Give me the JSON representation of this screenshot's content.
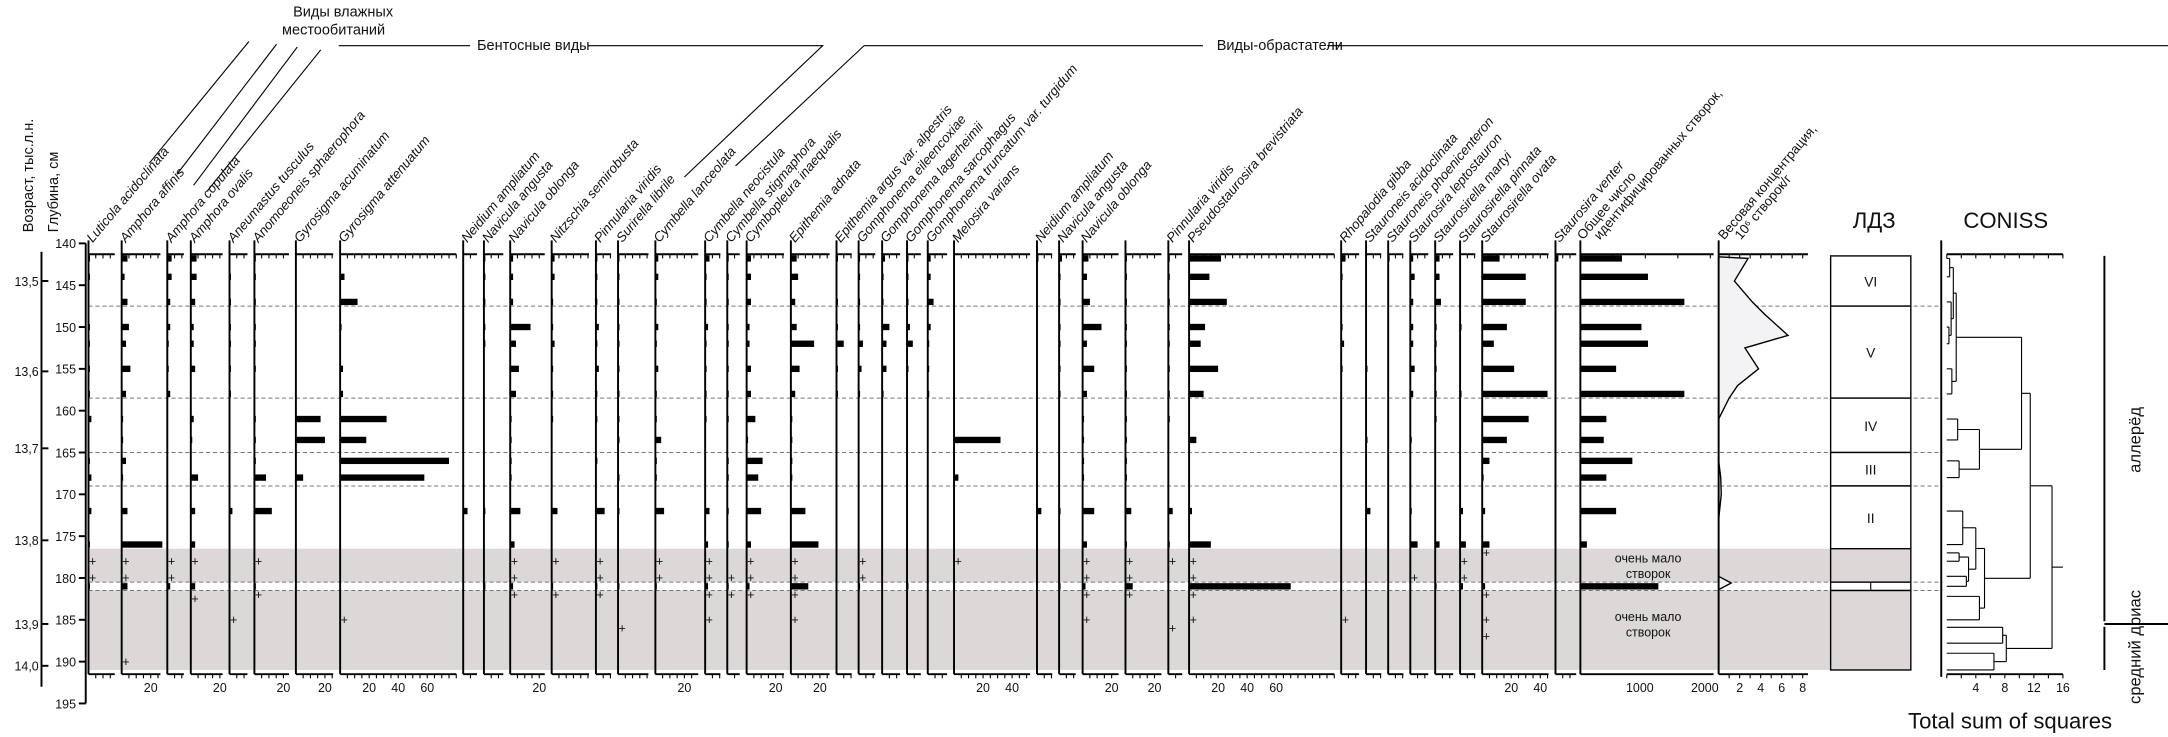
{
  "axes": {
    "age_label": "Возраст, тыс.л.н.",
    "depth_label": "Глубина, см",
    "depth_ticks": [
      140,
      145,
      150,
      155,
      160,
      165,
      170,
      175,
      180,
      185,
      190,
      195
    ],
    "age_ticks": [
      {
        "label": "13,5",
        "depth": 144.5
      },
      {
        "label": "13,6",
        "depth": 155.3
      },
      {
        "label": "13,7",
        "depth": 164.5
      },
      {
        "label": "13,8",
        "depth": 175.5
      },
      {
        "label": "13,9",
        "depth": 185.5
      },
      {
        "label": "14,0",
        "depth": 190.5
      }
    ]
  },
  "groups": {
    "wet": [
      "Виды влажных",
      "местообитаний"
    ],
    "benthic": "Бентосные виды",
    "periphyton": "Виды-обрастатели"
  },
  "samples": [
    141.8,
    144,
    147,
    150,
    152,
    155,
    158,
    161,
    163.5,
    166,
    168,
    172,
    176,
    181
  ],
  "taxa": [
    {
      "name": "Luticola acidoclinata",
      "ticks": [],
      "values": [
        1,
        1,
        0,
        1,
        1,
        1,
        1,
        2,
        0,
        1,
        2,
        2,
        1,
        1
      ],
      "rare": [
        178,
        180
      ]
    },
    {
      "name": "Amphora affinis",
      "ticks": [
        20
      ],
      "values": [
        4,
        2,
        4,
        5,
        3,
        6,
        3,
        1,
        1,
        3,
        1,
        4,
        28,
        4
      ],
      "rare": [
        178,
        180,
        190
      ]
    },
    {
      "name": "Amphora copulata",
      "ticks": [],
      "values": [
        3,
        3,
        2,
        2,
        1,
        1,
        2,
        0,
        0,
        0,
        0,
        0,
        0,
        2
      ],
      "rare": [
        178,
        180
      ]
    },
    {
      "name": "Amphora ovalis",
      "ticks": [
        20
      ],
      "values": [
        4,
        4,
        3,
        2,
        2,
        3,
        0,
        2,
        1,
        0,
        5,
        3,
        3,
        3
      ],
      "rare": [
        178,
        182.5
      ]
    },
    {
      "name": "Aneumastus tusculus",
      "ticks": [],
      "values": [
        0,
        1,
        1,
        1,
        1,
        1,
        1,
        0,
        0,
        0,
        0,
        2,
        0,
        0
      ],
      "rare": [
        185
      ]
    },
    {
      "name": "Anomoeoneis sphaerophora",
      "ticks": [
        20
      ],
      "values": [
        1,
        1,
        1,
        1,
        1,
        1,
        0,
        1,
        1,
        1,
        8,
        12,
        0,
        1
      ],
      "rare": [
        178,
        182
      ]
    },
    {
      "name": "Gyrosigma acuminatum",
      "ticks": [
        20
      ],
      "values": [
        0,
        0,
        0,
        0,
        0,
        0,
        0,
        17,
        20,
        0,
        5,
        0,
        0,
        0
      ],
      "rare": []
    },
    {
      "name": "Gyrosigma attenuatum",
      "ticks": [
        20,
        40,
        60
      ],
      "values": [
        0,
        3,
        12,
        1,
        0,
        2,
        2,
        32,
        18,
        75,
        58,
        0,
        0,
        0
      ],
      "rare": [
        185
      ]
    },
    {
      "name": "Neidium ampliatum",
      "ticks": [],
      "values": [
        0,
        0,
        0,
        0,
        0,
        0,
        0,
        0,
        0,
        0,
        0,
        3,
        0,
        0
      ],
      "rare": []
    },
    {
      "name": "Navicula angusta",
      "ticks": [],
      "values": [
        1,
        1,
        1,
        1,
        1,
        0,
        0,
        0,
        0,
        0,
        0,
        1,
        0,
        1
      ],
      "rare": []
    },
    {
      "name": "Navicula oblonga",
      "ticks": [
        20
      ],
      "values": [
        2,
        2,
        2,
        14,
        4,
        6,
        4,
        1,
        1,
        1,
        1,
        7,
        3,
        2
      ],
      "rare": [
        178,
        180,
        182
      ]
    },
    {
      "name": "Nitzschia semirobusta",
      "ticks": [],
      "values": [
        2,
        2,
        1,
        1,
        2,
        1,
        1,
        1,
        0,
        0,
        0,
        4,
        0,
        1
      ],
      "rare": [
        178,
        182
      ]
    },
    {
      "name": "Pinnularia viridis",
      "ticks": [],
      "values": [
        1,
        1,
        1,
        2,
        1,
        2,
        1,
        1,
        0,
        1,
        0,
        6,
        0,
        1
      ],
      "rare": [
        178,
        180,
        182
      ]
    },
    {
      "name": "Surirella librile",
      "ticks": [],
      "values": [
        1,
        1,
        1,
        1,
        1,
        1,
        1,
        1,
        1,
        0,
        1,
        1,
        0,
        1
      ],
      "rare": [
        186
      ]
    },
    {
      "name": "Cymbella lanceolata",
      "ticks": [
        20
      ],
      "values": [
        2,
        2,
        1,
        2,
        1,
        2,
        1,
        1,
        4,
        1,
        1,
        6,
        0,
        1
      ],
      "rare": [
        178,
        180
      ]
    },
    {
      "name": "Cymbella neocistula",
      "ticks": [],
      "values": [
        3,
        1,
        1,
        2,
        1,
        1,
        1,
        1,
        0,
        0,
        0,
        3,
        2,
        2
      ],
      "rare": [
        178,
        180,
        182,
        185
      ]
    },
    {
      "name": "Cymbella stigmaphora",
      "ticks": [],
      "values": [
        1,
        1,
        1,
        1,
        1,
        1,
        1,
        1,
        0,
        1,
        1,
        1,
        1,
        1
      ],
      "rare": [
        180,
        182
      ]
    },
    {
      "name": "Cymbopleura inaequalis",
      "ticks": [
        20
      ],
      "values": [
        3,
        3,
        3,
        2,
        2,
        3,
        3,
        6,
        1,
        11,
        8,
        10,
        3,
        2
      ],
      "rare": [
        178,
        180,
        182
      ]
    },
    {
      "name": "Epithemia adnata",
      "ticks": [
        20
      ],
      "values": [
        4,
        5,
        3,
        4,
        16,
        6,
        3,
        1,
        1,
        1,
        1,
        10,
        19,
        12
      ],
      "rare": [
        178,
        180,
        182,
        185
      ]
    },
    {
      "name": "Epithemia argus var. alpestris",
      "ticks": [],
      "values": [
        1,
        0,
        1,
        1,
        5,
        1,
        1,
        0,
        0,
        0,
        0,
        0,
        0,
        0
      ],
      "rare": []
    },
    {
      "name": "Gomphonema eileencoxiae",
      "ticks": [],
      "values": [
        1,
        1,
        1,
        1,
        3,
        2,
        1,
        0,
        0,
        0,
        0,
        0,
        0,
        1
      ],
      "rare": [
        178,
        180
      ]
    },
    {
      "name": "Gomphonema lagerheimii",
      "ticks": [],
      "values": [
        2,
        1,
        1,
        5,
        3,
        3,
        1,
        0,
        0,
        0,
        0,
        0,
        0,
        0
      ],
      "rare": []
    },
    {
      "name": "Gomphonema sarcophagus",
      "ticks": [],
      "values": [
        1,
        1,
        1,
        2,
        4,
        1,
        0,
        0,
        0,
        0,
        0,
        0,
        0,
        1
      ],
      "rare": []
    },
    {
      "name": "Gomphonema truncatum var. turgidum",
      "ticks": [],
      "values": [
        2,
        2,
        4,
        2,
        1,
        1,
        1,
        0,
        0,
        0,
        0,
        0,
        0,
        0
      ],
      "rare": []
    },
    {
      "name": "Melosira varians",
      "ticks": [
        20,
        40
      ],
      "values": [
        0,
        0,
        0,
        0,
        0,
        0,
        0,
        0,
        32,
        0,
        3,
        0,
        0,
        0
      ],
      "rare": [
        178
      ]
    },
    {
      "name": "Neidium ampliatum",
      "ticks": [],
      "values": [
        1,
        0,
        0,
        0,
        0,
        0,
        0,
        0,
        0,
        0,
        0,
        3,
        0,
        0
      ],
      "rare": []
    },
    {
      "name": "Navicula angusta",
      "ticks": [],
      "values": [
        2,
        1,
        1,
        1,
        1,
        1,
        1,
        0,
        0,
        0,
        0,
        1,
        0,
        1
      ],
      "rare": []
    },
    {
      "name": "Navicula oblonga",
      "ticks": [
        20
      ],
      "values": [
        4,
        3,
        5,
        13,
        3,
        8,
        3,
        1,
        1,
        1,
        1,
        8,
        3,
        2
      ],
      "rare": [
        178,
        180,
        182,
        185
      ]
    },
    {
      "name": "",
      "ticks": [
        20
      ],
      "values": [
        1,
        1,
        1,
        1,
        1,
        1,
        1,
        1,
        1,
        1,
        1,
        4,
        1,
        5
      ],
      "rare": [
        178,
        180,
        182
      ]
    },
    {
      "name": "Pinnularia viridis",
      "ticks": [],
      "values": [
        1,
        1,
        1,
        1,
        1,
        1,
        1,
        1,
        0,
        0,
        0,
        3,
        1,
        0
      ],
      "rare": [
        178,
        186
      ]
    },
    {
      "name": "Pseudostaurosira brevistriata",
      "ticks": [
        20,
        40,
        60
      ],
      "values": [
        22,
        14,
        26,
        11,
        8,
        20,
        10,
        0,
        5,
        0,
        0,
        2,
        15,
        70
      ],
      "rare": [
        178,
        180,
        182,
        185
      ]
    },
    {
      "name": "Rhopalodia gibba",
      "ticks": [],
      "values": [
        3,
        1,
        0,
        1,
        2,
        1,
        0,
        0,
        0,
        0,
        0,
        0,
        0,
        0
      ],
      "rare": [
        185
      ]
    },
    {
      "name": "Stauroneis acidoclinata",
      "ticks": [],
      "values": [
        0,
        0,
        0,
        0,
        0,
        1,
        0,
        0,
        1,
        0,
        0,
        3,
        0,
        0
      ],
      "rare": []
    },
    {
      "name": "Stauroneis phoenicenteron",
      "ticks": [],
      "values": [
        1,
        0,
        0,
        0,
        0,
        0,
        0,
        0,
        0,
        0,
        0,
        0,
        0,
        0
      ],
      "rare": []
    },
    {
      "name": "Staurosira leptostauron",
      "ticks": [],
      "values": [
        2,
        3,
        2,
        2,
        2,
        3,
        2,
        0,
        1,
        0,
        0,
        1,
        5,
        0
      ],
      "rare": [
        180
      ]
    },
    {
      "name": "Staurosirella martyi",
      "ticks": [],
      "values": [
        3,
        3,
        4,
        1,
        1,
        1,
        1,
        1,
        0,
        0,
        0,
        0,
        3,
        1
      ],
      "rare": []
    },
    {
      "name": "Staurosirella pinnata",
      "ticks": [],
      "values": [
        0,
        0,
        0,
        1,
        0,
        0,
        1,
        0,
        0,
        0,
        0,
        2,
        4,
        2
      ],
      "rare": [
        178,
        180
      ]
    },
    {
      "name": "Staurosirella ovata",
      "ticks": [
        20,
        40
      ],
      "values": [
        12,
        30,
        30,
        17,
        8,
        22,
        45,
        32,
        17,
        5,
        1,
        2,
        5,
        2
      ],
      "rare": [
        177,
        182,
        185,
        187
      ]
    },
    {
      "name": "Staurosira venter",
      "ticks": [],
      "values": [
        2,
        0,
        0,
        0,
        0,
        0,
        0,
        0,
        0,
        0,
        0,
        0,
        0,
        0
      ],
      "rare": []
    }
  ],
  "total": {
    "label_1": "Общее число",
    "label_2": "идентифицированных створок,",
    "ticks": [
      1000,
      2000
    ],
    "values": [
      640,
      1040,
      1600,
      940,
      1040,
      550,
      1600,
      400,
      360,
      800,
      400,
      550,
      100,
      1200
    ]
  },
  "concentration": {
    "label_1": "Весовая концентрация,",
    "label_2": "10⁶ створок/г",
    "ticks": [
      2,
      4,
      6,
      8
    ],
    "profile": [
      [
        141.6,
        0
      ],
      [
        141.8,
        2.8
      ],
      [
        144.5,
        1.5
      ],
      [
        147,
        3.2
      ],
      [
        148.5,
        4.4
      ],
      [
        151,
        6.6
      ],
      [
        152.5,
        2.5
      ],
      [
        155,
        3.8
      ],
      [
        157,
        1.8
      ],
      [
        158.5,
        1.0
      ],
      [
        161,
        0
      ],
      [
        166,
        0
      ],
      [
        168,
        0.2
      ],
      [
        170,
        0.25
      ],
      [
        173,
        0
      ],
      [
        179.8,
        0
      ],
      [
        180.6,
        1.2
      ],
      [
        181.4,
        0
      ],
      [
        191,
        0
      ]
    ]
  },
  "boundaries": [
    147.5,
    158.5,
    165,
    169,
    180.5,
    181.5
  ],
  "low_count_intervals": [
    [
      176.5,
      180.5
    ],
    [
      181.5,
      191
    ]
  ],
  "notes": [
    {
      "text_1": "очень мало",
      "text_2": "створок",
      "depth": 178.5
    },
    {
      "text_1": "очень мало",
      "text_2": "створок",
      "depth": 185.5
    }
  ],
  "zones": {
    "title": "ЛДЗ",
    "items": [
      {
        "label": "VI",
        "top": 141.5,
        "bottom": 147.5
      },
      {
        "label": "V",
        "top": 147.5,
        "bottom": 158.5
      },
      {
        "label": "IV",
        "top": 158.5,
        "bottom": 165
      },
      {
        "label": "III",
        "top": 165,
        "bottom": 169
      },
      {
        "label": "II",
        "top": 169,
        "bottom": 176.5
      },
      {
        "label": "",
        "top": 176.5,
        "bottom": 180.5
      },
      {
        "label": "",
        "top": 180.5,
        "bottom": 181.5
      },
      {
        "label": "",
        "top": 181.5,
        "bottom": 191
      }
    ]
  },
  "coniss": {
    "title": "CONISS",
    "xlabel": "Total sum of squares",
    "ticks": [
      4,
      8,
      12,
      16
    ],
    "xlim": [
      0,
      16
    ],
    "root_stub": 16,
    "tree": {
      "h": 14.5,
      "c": [
        {
          "h": 11.5,
          "c": [
            {
              "h": 10.3,
              "c": [
                {
                  "h": 1.3,
                  "c": [
                    {
                      "h": 0.9,
                      "c": [
                        {
                          "h": 0.4,
                          "c": [
                            141.8,
                            144
                          ]
                        },
                        {
                          "h": 0.6,
                          "c": [
                            147,
                            {
                              "h": 0.3,
                              "c": [
                                150,
                                152
                              ]
                            }
                          ]
                        }
                      ]
                    },
                    {
                      "h": 0.7,
                      "c": [
                        155,
                        158
                      ]
                    }
                  ]
                },
                {
                  "h": 4.5,
                  "c": [
                    {
                      "h": 1.5,
                      "c": [
                        161,
                        163.5
                      ]
                    },
                    {
                      "h": 1.7,
                      "c": [
                        166,
                        168
                      ]
                    }
                  ]
                }
              ]
            },
            {
              "h": 5.2,
              "c": [
                {
                  "h": 4.0,
                  "c": [
                    {
                      "h": 2.2,
                      "c": [
                        172,
                        176
                      ]
                    },
                    {
                      "h": 3.0,
                      "c": [
                        {
                          "h": 1.7,
                          "c": [
                            177,
                            178
                          ]
                        },
                        {
                          "h": 2.7,
                          "c": [
                            179.8,
                            181
                          ]
                        }
                      ]
                    }
                  ]
                },
                {
                  "h": 4.5,
                  "c": [
                    182.2,
                    185
                  ]
                }
              ]
            }
          ]
        },
        {
          "h": 8.2,
          "c": [
            {
              "h": 7.7,
              "c": [
                185.9,
                187.8
              ]
            },
            {
              "h": 6.5,
              "c": [
                189,
                191
              ]
            }
          ]
        }
      ]
    }
  },
  "periods": [
    {
      "label": "аллерёд",
      "top": 141.5,
      "bottom": 185.5
    },
    {
      "label": "средний дриас",
      "top": 185.5,
      "bottom": 191
    }
  ],
  "colors": {
    "bars": "#000000",
    "low_count_band": "#dcd8d8",
    "concentration_fill": "#f3f3f6"
  }
}
